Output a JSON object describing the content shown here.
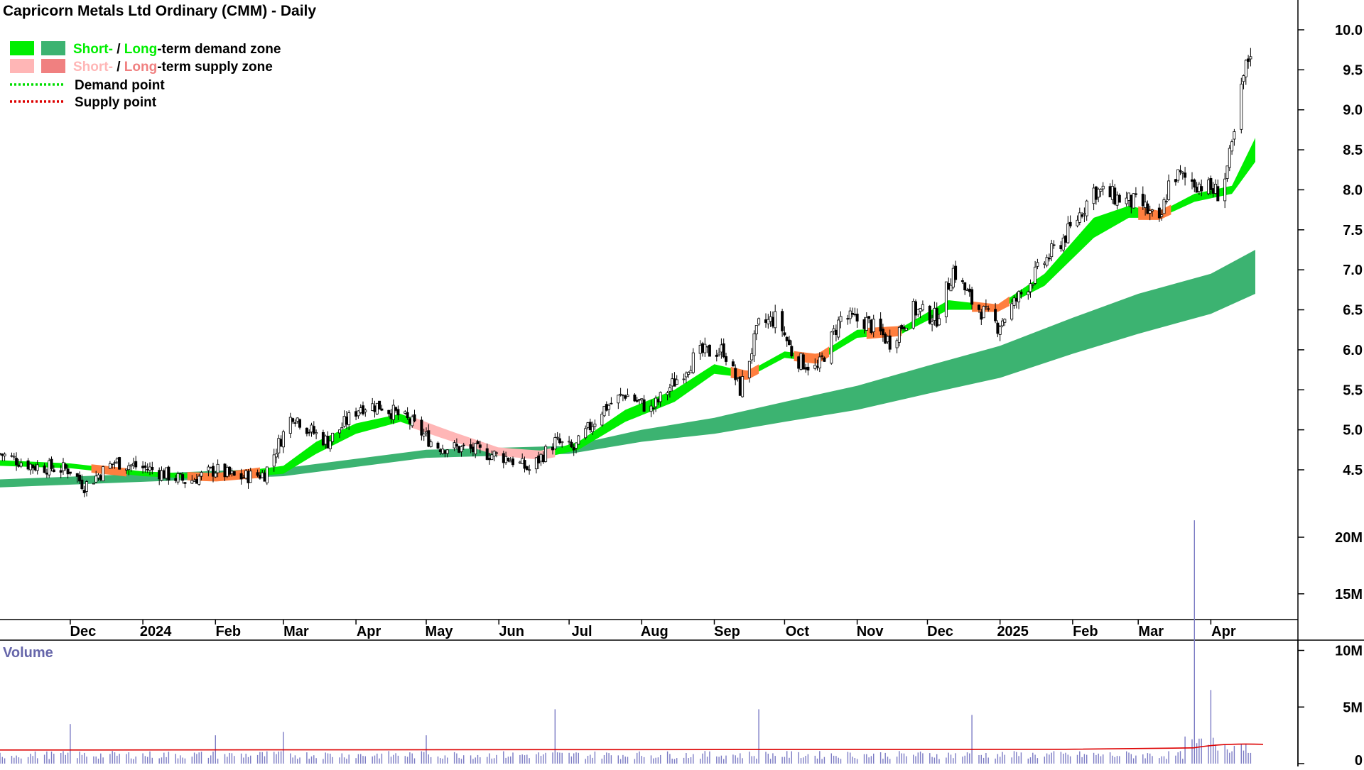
{
  "title": "Capricorn Metals Ltd Ordinary (CMM) - Daily",
  "legend": {
    "demand_prefix_short": "Short-",
    "demand_sep": " / ",
    "demand_prefix_long": "Long",
    "demand_suffix": "-term demand zone",
    "supply_prefix_short": "Short-",
    "supply_sep": " / ",
    "supply_prefix_long": "Long",
    "supply_suffix": "-term supply zone",
    "demand_point": "Demand point",
    "supply_point": "Supply point"
  },
  "colors": {
    "short_demand": "#00ee00",
    "long_demand": "#3cb371",
    "short_supply": "#ffb6b6",
    "long_supply": "#f08080",
    "supply_band": "#ff7f3f",
    "demand_point": "#00dd00",
    "supply_point": "#dd0000",
    "volume_bar": "#7b7bc4",
    "volume_avg": "#dd0000"
  },
  "volume_label": "Volume",
  "chart_data": {
    "type": "candlestick",
    "title": "Capricorn Metals Ltd Ordinary (CMM) - Daily",
    "price_axis": {
      "ticks": [
        "4.5",
        "5.0",
        "5.5",
        "6.0",
        "6.5",
        "7.0",
        "7.5",
        "8.0",
        "8.5",
        "9.0",
        "9.5",
        "10.0"
      ],
      "ylim": [
        4.0,
        10.3
      ]
    },
    "time_axis": {
      "ticks": [
        "Dec",
        "2024",
        "Feb",
        "Mar",
        "Apr",
        "May",
        "Jun",
        "Jul",
        "Aug",
        "Sep",
        "Oct",
        "Nov",
        "Dec",
        "2025",
        "Feb",
        "Mar",
        "Apr"
      ],
      "range": [
        "2023-11-01",
        "2025-04-30"
      ]
    },
    "volume_axis": {
      "ticks": [
        "0",
        "5M",
        "10M",
        "15M",
        "20M"
      ],
      "ylim": [
        0,
        22
      ]
    },
    "price_anchors": [
      [
        "2023-11-01",
        4.7
      ],
      [
        "2023-11-15",
        4.55
      ],
      [
        "2023-12-01",
        4.5
      ],
      [
        "2023-12-07",
        4.3
      ],
      [
        "2023-12-20",
        4.6
      ],
      [
        "2024-01-05",
        4.5
      ],
      [
        "2024-01-20",
        4.35
      ],
      [
        "2024-02-01",
        4.5
      ],
      [
        "2024-02-10",
        4.4
      ],
      [
        "2024-02-22",
        4.45
      ],
      [
        "2024-03-05",
        5.2
      ],
      [
        "2024-03-12",
        5.0
      ],
      [
        "2024-03-20",
        4.85
      ],
      [
        "2024-04-03",
        5.3
      ],
      [
        "2024-04-12",
        5.3
      ],
      [
        "2024-04-24",
        5.1
      ],
      [
        "2024-05-05",
        4.8
      ],
      [
        "2024-05-20",
        4.75
      ],
      [
        "2024-06-05",
        4.65
      ],
      [
        "2024-06-14",
        4.5
      ],
      [
        "2024-06-25",
        4.85
      ],
      [
        "2024-07-03",
        4.75
      ],
      [
        "2024-07-15",
        5.25
      ],
      [
        "2024-07-25",
        5.45
      ],
      [
        "2024-08-05",
        5.25
      ],
      [
        "2024-08-15",
        5.6
      ],
      [
        "2024-08-25",
        5.95
      ],
      [
        "2024-09-05",
        6.0
      ],
      [
        "2024-09-12",
        5.5
      ],
      [
        "2024-09-20",
        6.3
      ],
      [
        "2024-09-28",
        6.4
      ],
      [
        "2024-10-05",
        5.9
      ],
      [
        "2024-10-15",
        5.75
      ],
      [
        "2024-10-25",
        6.4
      ],
      [
        "2024-11-05",
        6.35
      ],
      [
        "2024-11-15",
        6.1
      ],
      [
        "2024-11-25",
        6.5
      ],
      [
        "2024-12-05",
        6.4
      ],
      [
        "2024-12-12",
        7.0
      ],
      [
        "2024-12-20",
        6.6
      ],
      [
        "2024-12-31",
        6.3
      ],
      [
        "2025-01-10",
        6.7
      ],
      [
        "2025-01-20",
        7.1
      ],
      [
        "2025-01-31",
        7.5
      ],
      [
        "2025-02-10",
        8.0
      ],
      [
        "2025-02-20",
        7.9
      ],
      [
        "2025-03-03",
        7.8
      ],
      [
        "2025-03-10",
        7.55
      ],
      [
        "2025-03-15",
        8.2
      ],
      [
        "2025-03-25",
        8.1
      ],
      [
        "2025-04-05",
        7.95
      ],
      [
        "2025-04-10",
        8.5
      ],
      [
        "2025-04-15",
        9.4
      ],
      [
        "2025-04-20",
        10.0
      ]
    ],
    "short_demand_zone": [
      [
        "2023-11-01",
        4.55,
        4.62
      ],
      [
        "2023-12-01",
        4.52,
        4.58
      ],
      [
        "2024-01-01",
        4.42,
        4.48
      ],
      [
        "2024-02-01",
        4.38,
        4.44
      ],
      [
        "2024-03-01",
        4.45,
        4.55
      ],
      [
        "2024-03-15",
        4.7,
        4.85
      ],
      [
        "2024-04-01",
        4.95,
        5.08
      ],
      [
        "2024-04-20",
        5.1,
        5.2
      ],
      [
        "2024-05-10",
        4.9,
        4.98
      ],
      [
        "2024-06-01",
        4.7,
        4.76
      ],
      [
        "2024-06-20",
        4.65,
        4.72
      ],
      [
        "2024-07-05",
        4.75,
        4.85
      ],
      [
        "2024-07-25",
        5.1,
        5.25
      ],
      [
        "2024-08-15",
        5.35,
        5.5
      ],
      [
        "2024-09-01",
        5.7,
        5.82
      ],
      [
        "2024-09-15",
        5.65,
        5.72
      ],
      [
        "2024-10-01",
        5.9,
        5.98
      ],
      [
        "2024-10-15",
        5.85,
        5.93
      ],
      [
        "2024-11-01",
        6.15,
        6.25
      ],
      [
        "2024-11-20",
        6.2,
        6.28
      ],
      [
        "2024-12-10",
        6.5,
        6.62
      ],
      [
        "2024-12-31",
        6.5,
        6.55
      ],
      [
        "2025-01-20",
        6.8,
        6.95
      ],
      [
        "2025-02-10",
        7.4,
        7.65
      ],
      [
        "2025-02-25",
        7.65,
        7.8
      ],
      [
        "2025-03-10",
        7.65,
        7.72
      ],
      [
        "2025-03-25",
        7.85,
        7.95
      ],
      [
        "2025-04-10",
        7.95,
        8.05
      ],
      [
        "2025-04-20",
        8.35,
        8.65
      ]
    ],
    "long_demand_zone": [
      [
        "2023-11-01",
        4.28,
        4.38
      ],
      [
        "2024-01-01",
        4.35,
        4.45
      ],
      [
        "2024-03-01",
        4.42,
        4.52
      ],
      [
        "2024-05-01",
        4.65,
        4.75
      ],
      [
        "2024-07-01",
        4.7,
        4.8
      ],
      [
        "2024-08-01",
        4.85,
        5.0
      ],
      [
        "2024-09-01",
        4.95,
        5.15
      ],
      [
        "2024-10-01",
        5.1,
        5.35
      ],
      [
        "2024-11-01",
        5.25,
        5.55
      ],
      [
        "2024-12-01",
        5.45,
        5.8
      ],
      [
        "2025-01-01",
        5.65,
        6.05
      ],
      [
        "2025-02-01",
        5.95,
        6.4
      ],
      [
        "2025-03-01",
        6.2,
        6.7
      ],
      [
        "2025-04-01",
        6.45,
        6.95
      ],
      [
        "2025-04-20",
        6.7,
        7.25
      ]
    ],
    "supply_periods": [
      [
        "2023-12-10",
        "2023-12-25"
      ],
      [
        "2024-01-20",
        "2024-02-20"
      ],
      [
        "2024-04-25",
        "2024-06-25"
      ],
      [
        "2024-09-08",
        "2024-09-20"
      ],
      [
        "2024-10-05",
        "2024-10-20"
      ],
      [
        "2024-11-05",
        "2024-11-20"
      ],
      [
        "2024-12-20",
        "2025-01-05"
      ],
      [
        "2025-03-01",
        "2025-03-15"
      ]
    ],
    "volume": {
      "typical_millions": 0.8,
      "spikes": [
        [
          "2023-12-01",
          3.5
        ],
        [
          "2023-12-10",
          2.8
        ],
        [
          "2024-02-01",
          2.5
        ],
        [
          "2024-03-01",
          2.8
        ],
        [
          "2024-05-01",
          2.5
        ],
        [
          "2024-06-25",
          4.8
        ],
        [
          "2024-09-20",
          4.8
        ],
        [
          "2024-12-20",
          4.3
        ],
        [
          "2025-03-15",
          2.5
        ],
        [
          "2025-03-25",
          21.5
        ],
        [
          "2025-04-01",
          6.5
        ],
        [
          "2025-04-05",
          2.8
        ],
        [
          "2025-04-12",
          3.0
        ]
      ],
      "average_millions": 1.2
    }
  }
}
